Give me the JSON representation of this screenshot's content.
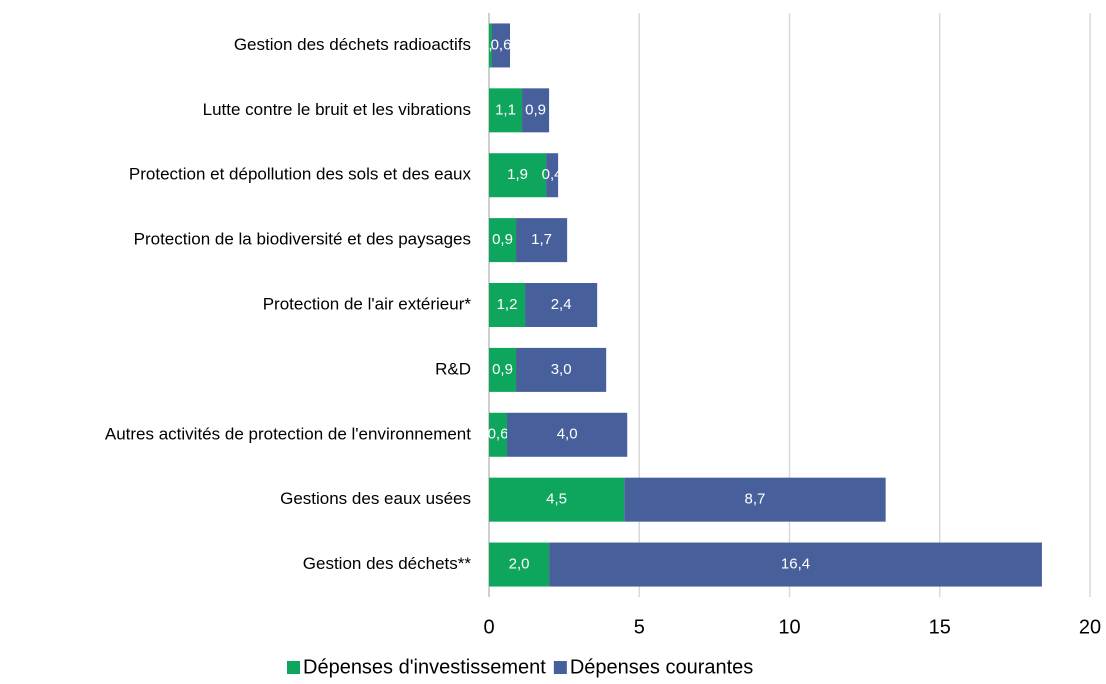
{
  "chart_data": {
    "type": "stacked-bar-horizontal",
    "categories": [
      "Gestion des déchets radioactifs",
      "Lutte contre le bruit et les vibrations",
      "Protection et dépollution des sols et des eaux",
      "Protection de la biodiversité et des paysages",
      "Protection de l'air extérieur*",
      "R&D",
      "Autres activités de protection de l'environnement",
      "Gestions des eaux usées",
      "Gestion des déchets**"
    ],
    "series": [
      {
        "name": "Dépenses d'investissement",
        "color": "#0ea65c",
        "values": [
          0.1,
          1.1,
          1.9,
          0.9,
          1.2,
          0.9,
          0.6,
          4.5,
          2.0
        ],
        "value_labels": [
          "0,1",
          "1,1",
          "1,9",
          "0,9",
          "1,2",
          "0,9",
          "0,6",
          "4,5",
          "2,0"
        ]
      },
      {
        "name": "Dépenses courantes",
        "color": "#475f9b",
        "values": [
          0.6,
          0.9,
          0.4,
          1.7,
          2.4,
          3.0,
          4.0,
          8.7,
          16.4
        ],
        "value_labels": [
          "0,6",
          "0,9",
          "0,4",
          "1,7",
          "2,4",
          "3,0",
          "4,0",
          "8,7",
          "16,4"
        ]
      }
    ],
    "xlim": [
      0,
      20
    ],
    "xticks": [
      0,
      5,
      10,
      15,
      20
    ],
    "grid": true,
    "legend": "bottom"
  }
}
